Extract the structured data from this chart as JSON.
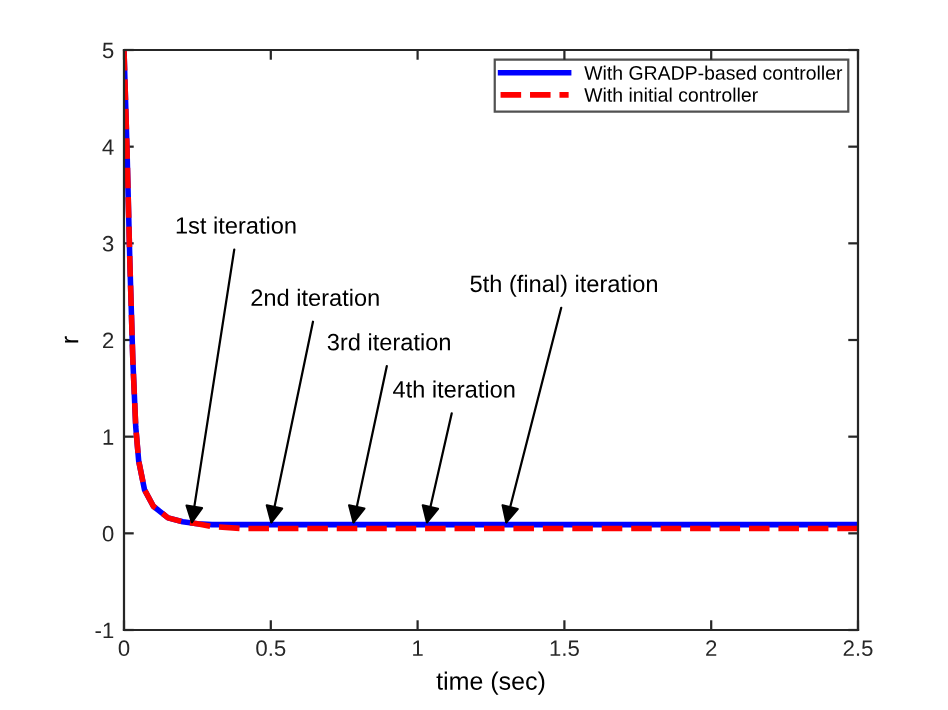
{
  "chart_data": {
    "type": "line",
    "xlabel": "time (sec)",
    "ylabel": "r",
    "xlim": [
      0,
      2.5
    ],
    "ylim": [
      -1,
      5
    ],
    "xticks": [
      0,
      0.5,
      1,
      1.5,
      2,
      2.5
    ],
    "yticks": [
      -1,
      0,
      1,
      2,
      3,
      4,
      5
    ],
    "grid": false,
    "legend": "top right",
    "series": [
      {
        "name": "With GRADP-based controller",
        "color": "#0000ff",
        "line_style": "solid",
        "x": [
          0,
          0.01,
          0.02,
          0.03,
          0.04,
          0.05,
          0.07,
          0.1,
          0.15,
          0.2,
          0.25,
          0.3,
          2.5
        ],
        "values": [
          5,
          4,
          2.8,
          1.8,
          1.1,
          0.75,
          0.45,
          0.28,
          0.16,
          0.12,
          0.1,
          0.09,
          0.09
        ]
      },
      {
        "name": "With initial controller",
        "color": "#ff0000",
        "line_style": "dashed",
        "x": [
          0,
          0.01,
          0.02,
          0.03,
          0.04,
          0.05,
          0.07,
          0.1,
          0.15,
          0.2,
          0.25,
          0.3,
          0.4,
          2.5
        ],
        "values": [
          5,
          4,
          2.8,
          1.8,
          1.1,
          0.75,
          0.45,
          0.28,
          0.16,
          0.12,
          0.1,
          0.07,
          0.05,
          0.05
        ]
      }
    ],
    "annotations": [
      {
        "text": "1st iteration",
        "x": 0.23,
        "y": 0.09
      },
      {
        "text": "2nd iteration",
        "x": 0.5,
        "y": 0.09
      },
      {
        "text": "3rd iteration",
        "x": 0.78,
        "y": 0.09
      },
      {
        "text": "4th iteration",
        "x": 1.03,
        "y": 0.09
      },
      {
        "text": "5th (final) iteration",
        "x": 1.3,
        "y": 0.09
      }
    ]
  }
}
